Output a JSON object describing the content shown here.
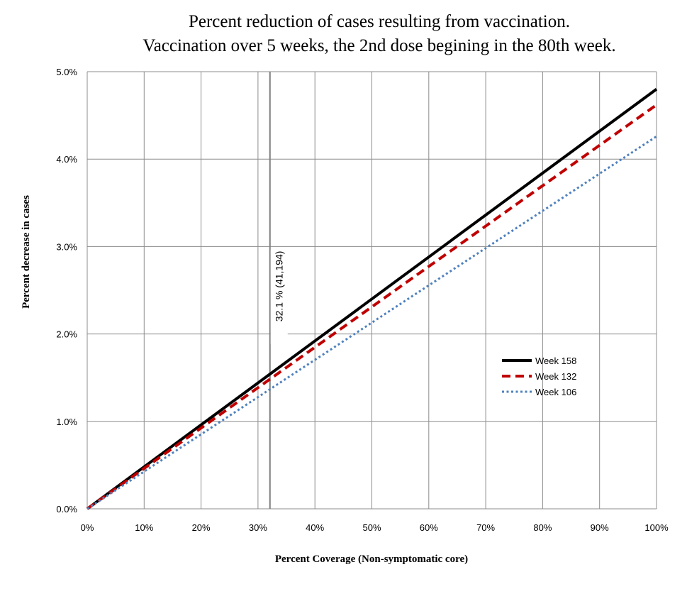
{
  "chart_data": {
    "type": "line",
    "title_line1": "Percent reduction of cases resulting from vaccination.",
    "title_line2": "Vaccination over 5 weeks, the 2nd dose begining in the 80th week.",
    "xlabel": "Percent Coverage (Non-symptomatic core)",
    "ylabel": "Percent decrease in cases",
    "xlim": [
      0,
      100
    ],
    "ylim": [
      0,
      5
    ],
    "grid": true,
    "x_ticks": [
      0,
      10,
      20,
      30,
      40,
      50,
      60,
      70,
      80,
      90,
      100
    ],
    "x_tick_labels": [
      "0%",
      "10%",
      "20%",
      "30%",
      "40%",
      "50%",
      "60%",
      "70%",
      "80%",
      "90%",
      "100%"
    ],
    "y_ticks": [
      0,
      1,
      2,
      3,
      4,
      5
    ],
    "y_tick_labels": [
      "0.0%",
      "1.0%",
      "2.0%",
      "3.0%",
      "4.0%",
      "5.0%"
    ],
    "legend_position": "right",
    "series": [
      {
        "name": "Week 158",
        "color": "#000000",
        "style": "solid",
        "x": [
          0,
          100
        ],
        "values": [
          0,
          4.8
        ]
      },
      {
        "name": "Week 132",
        "color": "#c00000",
        "style": "dashed",
        "x": [
          0,
          100
        ],
        "values": [
          0,
          4.62
        ]
      },
      {
        "name": "Week 106",
        "color": "#4f81bd",
        "style": "dotted",
        "x": [
          0,
          100
        ],
        "values": [
          0,
          4.26
        ]
      }
    ],
    "annotations": [
      {
        "x": 32.1,
        "text": "32.1 %  (41,194)"
      }
    ]
  }
}
